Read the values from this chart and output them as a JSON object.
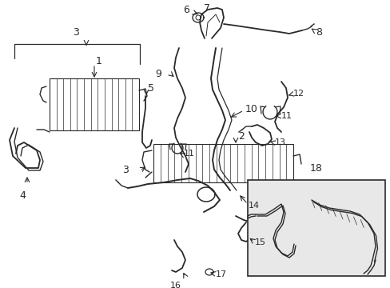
{
  "bg_color": "#ffffff",
  "line_color": "#2a2a2a",
  "fig_width": 4.89,
  "fig_height": 3.6,
  "dpi": 100,
  "lfs": 8,
  "inset_bg": "#e8e8e8"
}
